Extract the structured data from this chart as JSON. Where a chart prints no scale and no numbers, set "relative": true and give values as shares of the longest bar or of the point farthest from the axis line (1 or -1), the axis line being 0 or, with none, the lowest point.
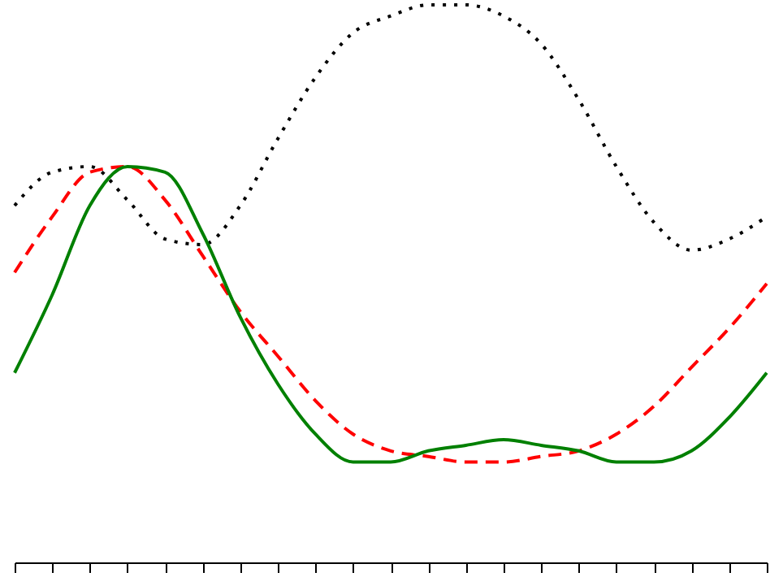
{
  "chart_data": {
    "type": "line",
    "relative": true,
    "tick_labels": false,
    "grid": false,
    "marker": "none",
    "categories": [
      null,
      null,
      null,
      null,
      null,
      null,
      null,
      null,
      null,
      null,
      null,
      null,
      null,
      null,
      null,
      null,
      null,
      null,
      null,
      null,
      null
    ],
    "series": [
      {
        "color": "#000000",
        "line_style": "dotted",
        "values": [
          0.64,
          0.7,
          0.71,
          0.65,
          0.58,
          0.57,
          0.64,
          0.76,
          0.87,
          0.95,
          0.98,
          1,
          1,
          0.98,
          0.93,
          0.83,
          0.71,
          0.61,
          0.56,
          0.58,
          0.62
        ]
      },
      {
        "color": "#ff0000",
        "line_style": "dashed",
        "values": [
          0.52,
          0.62,
          0.7,
          0.71,
          0.65,
          0.55,
          0.45,
          0.37,
          0.29,
          0.23,
          0.2,
          0.19,
          0.18,
          0.18,
          0.19,
          0.2,
          0.23,
          0.28,
          0.35,
          0.42,
          0.5
        ]
      },
      {
        "color": "#008000",
        "line_style": "solid",
        "values": [
          0.34,
          0.48,
          0.64,
          0.71,
          0.7,
          0.59,
          0.44,
          0.32,
          0.23,
          0.18,
          0.18,
          0.2,
          0.21,
          0.22,
          0.21,
          0.2,
          0.18,
          0.18,
          0.2,
          0.26,
          0.34
        ]
      }
    ]
  }
}
